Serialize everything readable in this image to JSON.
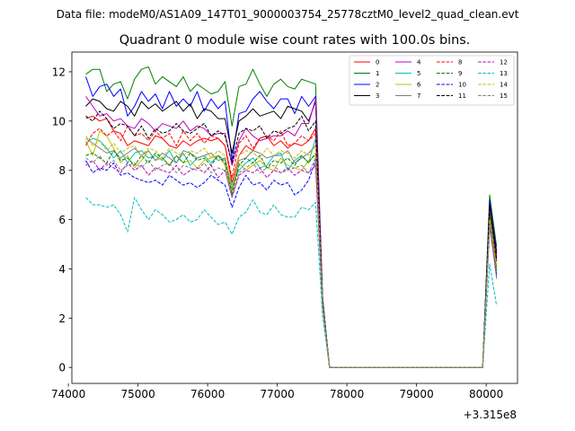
{
  "suptitle": "Data file: modeM0/AS1A09_147T01_9000003754_25778cztM0_level2_quad_clean.evt",
  "chart_data": {
    "type": "line",
    "title": "Quadrant 0 module wise count rates with 100.0s bins.",
    "xlabel": "",
    "ylabel": "",
    "x_offset_label": "+3.315e8",
    "xlim": [
      74050,
      80450
    ],
    "ylim": [
      -0.65,
      12.8
    ],
    "xticks": [
      74000,
      75000,
      76000,
      77000,
      78000,
      79000,
      80000
    ],
    "yticks": [
      0,
      2,
      4,
      6,
      8,
      10,
      12
    ],
    "legend_position": "top-right",
    "legend_columns": 4,
    "x": [
      74250,
      74350,
      74450,
      74550,
      74650,
      74750,
      74850,
      74950,
      75050,
      75150,
      75250,
      75350,
      75450,
      75550,
      75650,
      75750,
      75850,
      75950,
      76050,
      76150,
      76250,
      76350,
      76450,
      76550,
      76650,
      76750,
      76850,
      76950,
      77050,
      77150,
      77250,
      77350,
      77450,
      77550,
      77650,
      77750,
      77850,
      77950,
      78050,
      78150,
      78250,
      78350,
      78450,
      78550,
      78650,
      78750,
      78850,
      78950,
      79050,
      79150,
      79250,
      79350,
      79450,
      79550,
      79650,
      79750,
      79850,
      79950,
      80050,
      80150
    ],
    "series": [
      {
        "name": "0",
        "color": "#ff0000",
        "dash": "solid",
        "values": [
          10.1,
          10.2,
          10.0,
          10.1,
          9.6,
          9.5,
          9.0,
          9.2,
          9.1,
          9.0,
          9.4,
          9.3,
          9.0,
          8.9,
          9.2,
          9.0,
          9.2,
          9.3,
          9.2,
          9.3,
          9.0,
          7.5,
          8.6,
          9.0,
          8.8,
          9.3,
          9.4,
          9.0,
          9.2,
          8.9,
          9.1,
          9.0,
          9.2,
          9.7,
          2.8,
          0.0,
          0.0,
          0.0,
          0.0,
          0.0,
          0.0,
          0.0,
          0.0,
          0.0,
          0.0,
          0.0,
          0.0,
          0.0,
          0.0,
          0.0,
          0.0,
          0.0,
          0.0,
          0.0,
          0.0,
          0.0,
          0.0,
          0.0,
          6.5,
          4.3
        ]
      },
      {
        "name": "1",
        "color": "#008000",
        "dash": "solid",
        "values": [
          11.9,
          12.1,
          12.1,
          11.2,
          11.5,
          11.6,
          10.9,
          11.7,
          12.1,
          12.2,
          11.5,
          11.8,
          11.6,
          11.4,
          11.8,
          11.2,
          11.5,
          11.3,
          11.1,
          11.2,
          11.6,
          9.8,
          11.4,
          11.5,
          12.1,
          11.5,
          11.0,
          11.5,
          11.7,
          11.4,
          11.3,
          11.7,
          11.6,
          11.5,
          2.9,
          0.0,
          0.0,
          0.0,
          0.0,
          0.0,
          0.0,
          0.0,
          0.0,
          0.0,
          0.0,
          0.0,
          0.0,
          0.0,
          0.0,
          0.0,
          0.0,
          0.0,
          0.0,
          0.0,
          0.0,
          0.0,
          0.0,
          0.0,
          7.0,
          4.9
        ]
      },
      {
        "name": "2",
        "color": "#0000ff",
        "dash": "solid",
        "values": [
          11.8,
          11.0,
          11.4,
          11.5,
          11.0,
          11.3,
          10.2,
          10.6,
          11.2,
          10.8,
          11.1,
          10.5,
          11.2,
          10.6,
          10.9,
          10.6,
          11.2,
          10.4,
          10.9,
          10.5,
          10.8,
          8.4,
          10.3,
          10.4,
          10.9,
          11.2,
          10.8,
          10.5,
          10.9,
          10.9,
          10.3,
          11.0,
          10.6,
          11.0,
          2.8,
          0.0,
          0.0,
          0.0,
          0.0,
          0.0,
          0.0,
          0.0,
          0.0,
          0.0,
          0.0,
          0.0,
          0.0,
          0.0,
          0.0,
          0.0,
          0.0,
          0.0,
          0.0,
          0.0,
          0.0,
          0.0,
          0.0,
          0.0,
          6.8,
          4.7
        ]
      },
      {
        "name": "3",
        "color": "#000000",
        "dash": "solid",
        "values": [
          10.6,
          10.9,
          10.8,
          10.5,
          10.4,
          10.8,
          10.6,
          10.2,
          10.8,
          10.5,
          10.7,
          10.4,
          10.6,
          10.8,
          10.4,
          10.7,
          10.1,
          10.5,
          10.4,
          10.1,
          10.1,
          8.7,
          10.0,
          10.2,
          10.5,
          10.2,
          10.3,
          10.4,
          10.1,
          10.6,
          10.5,
          10.4,
          10.0,
          10.8,
          2.7,
          0.0,
          0.0,
          0.0,
          0.0,
          0.0,
          0.0,
          0.0,
          0.0,
          0.0,
          0.0,
          0.0,
          0.0,
          0.0,
          0.0,
          0.0,
          0.0,
          0.0,
          0.0,
          0.0,
          0.0,
          0.0,
          0.0,
          0.0,
          6.6,
          4.6
        ]
      },
      {
        "name": "4",
        "color": "#bf00bf",
        "dash": "solid",
        "values": [
          11.0,
          10.6,
          10.2,
          10.3,
          10.0,
          10.1,
          9.8,
          9.7,
          10.1,
          9.9,
          9.6,
          9.9,
          9.8,
          9.7,
          10.0,
          9.6,
          9.8,
          9.7,
          9.4,
          9.5,
          9.5,
          8.2,
          9.2,
          9.7,
          9.4,
          9.2,
          9.3,
          9.4,
          9.4,
          9.6,
          9.4,
          9.9,
          9.9,
          10.9,
          2.8,
          0.0,
          0.0,
          0.0,
          0.0,
          0.0,
          0.0,
          0.0,
          0.0,
          0.0,
          0.0,
          0.0,
          0.0,
          0.0,
          0.0,
          0.0,
          0.0,
          0.0,
          0.0,
          0.0,
          0.0,
          0.0,
          0.0,
          0.0,
          6.3,
          4.5
        ]
      },
      {
        "name": "5",
        "color": "#00bfbf",
        "dash": "solid",
        "values": [
          9.1,
          9.3,
          9.2,
          8.9,
          8.5,
          8.8,
          8.3,
          8.7,
          8.8,
          8.5,
          8.6,
          8.4,
          8.8,
          8.3,
          8.7,
          8.2,
          8.5,
          8.6,
          8.3,
          8.6,
          8.4,
          7.4,
          8.0,
          8.3,
          8.5,
          8.1,
          8.2,
          8.6,
          8.7,
          8.0,
          8.4,
          8.6,
          8.3,
          9.3,
          2.6,
          0.0,
          0.0,
          0.0,
          0.0,
          0.0,
          0.0,
          0.0,
          0.0,
          0.0,
          0.0,
          0.0,
          0.0,
          0.0,
          0.0,
          0.0,
          0.0,
          0.0,
          0.0,
          0.0,
          0.0,
          0.0,
          0.0,
          0.0,
          6.0,
          3.9
        ]
      },
      {
        "name": "6",
        "color": "#bfbf00",
        "dash": "solid",
        "values": [
          9.2,
          8.6,
          9.6,
          9.4,
          8.9,
          8.3,
          8.6,
          8.1,
          8.4,
          8.8,
          8.4,
          8.5,
          8.2,
          8.6,
          8.3,
          8.4,
          8.1,
          8.4,
          8.5,
          8.6,
          8.2,
          7.1,
          8.3,
          8.0,
          8.2,
          8.4,
          8.1,
          8.0,
          8.5,
          8.2,
          8.1,
          8.0,
          8.4,
          8.6,
          2.6,
          0.0,
          0.0,
          0.0,
          0.0,
          0.0,
          0.0,
          0.0,
          0.0,
          0.0,
          0.0,
          0.0,
          0.0,
          0.0,
          0.0,
          0.0,
          0.0,
          0.0,
          0.0,
          0.0,
          0.0,
          0.0,
          0.0,
          0.0,
          5.9,
          3.6
        ]
      },
      {
        "name": "7",
        "color": "#808080",
        "dash": "solid",
        "values": [
          9.3,
          9.1,
          8.9,
          8.7,
          8.8,
          8.5,
          8.7,
          8.9,
          8.6,
          8.8,
          8.4,
          8.7,
          8.5,
          8.3,
          8.8,
          8.7,
          8.5,
          8.6,
          8.7,
          8.4,
          8.5,
          7.2,
          8.4,
          8.5,
          8.8,
          8.7,
          8.5,
          8.6,
          8.6,
          8.8,
          8.3,
          8.5,
          8.7,
          9.0,
          2.7,
          0.0,
          0.0,
          0.0,
          0.0,
          0.0,
          0.0,
          0.0,
          0.0,
          0.0,
          0.0,
          0.0,
          0.0,
          0.0,
          0.0,
          0.0,
          0.0,
          0.0,
          0.0,
          0.0,
          0.0,
          0.0,
          0.0,
          0.0,
          6.1,
          4.0
        ]
      },
      {
        "name": "8",
        "color": "#ff0000",
        "dash": "dashed",
        "values": [
          9.0,
          9.5,
          9.7,
          9.4,
          9.6,
          9.2,
          9.8,
          9.4,
          9.5,
          9.2,
          9.6,
          9.3,
          9.5,
          9.0,
          9.6,
          9.2,
          9.5,
          9.1,
          9.4,
          9.3,
          9.0,
          7.7,
          9.1,
          9.4,
          8.9,
          9.3,
          9.4,
          9.2,
          9.6,
          9.0,
          9.1,
          9.4,
          9.2,
          9.5,
          2.7,
          0.0,
          0.0,
          0.0,
          0.0,
          0.0,
          0.0,
          0.0,
          0.0,
          0.0,
          0.0,
          0.0,
          0.0,
          0.0,
          0.0,
          0.0,
          0.0,
          0.0,
          0.0,
          0.0,
          0.0,
          0.0,
          0.0,
          0.0,
          6.4,
          4.4
        ]
      },
      {
        "name": "9",
        "color": "#008000",
        "dash": "dashed",
        "values": [
          8.6,
          8.7,
          8.5,
          8.3,
          8.8,
          8.4,
          8.5,
          8.2,
          8.6,
          8.3,
          8.7,
          8.5,
          8.2,
          8.6,
          8.3,
          8.7,
          8.4,
          8.5,
          8.2,
          8.6,
          8.3,
          7.0,
          8.2,
          8.5,
          8.3,
          8.6,
          8.1,
          8.4,
          8.3,
          8.5,
          8.2,
          8.6,
          8.3,
          8.7,
          2.6,
          0.0,
          0.0,
          0.0,
          0.0,
          0.0,
          0.0,
          0.0,
          0.0,
          0.0,
          0.0,
          0.0,
          0.0,
          0.0,
          0.0,
          0.0,
          0.0,
          0.0,
          0.0,
          0.0,
          0.0,
          0.0,
          0.0,
          0.0,
          6.2,
          4.1
        ]
      },
      {
        "name": "10",
        "color": "#0000ff",
        "dash": "dashed",
        "values": [
          8.4,
          7.9,
          8.1,
          8.0,
          8.3,
          7.8,
          7.9,
          7.7,
          7.6,
          7.5,
          7.6,
          7.4,
          7.8,
          7.6,
          7.4,
          7.5,
          7.3,
          7.5,
          7.8,
          7.6,
          7.4,
          6.5,
          7.3,
          7.8,
          7.4,
          7.5,
          7.2,
          7.6,
          7.4,
          7.5,
          7.0,
          7.2,
          7.6,
          8.4,
          2.5,
          0.0,
          0.0,
          0.0,
          0.0,
          0.0,
          0.0,
          0.0,
          0.0,
          0.0,
          0.0,
          0.0,
          0.0,
          0.0,
          0.0,
          0.0,
          0.0,
          0.0,
          0.0,
          0.0,
          0.0,
          0.0,
          0.0,
          0.0,
          5.7,
          3.8
        ]
      },
      {
        "name": "11",
        "color": "#000000",
        "dash": "dashed",
        "values": [
          10.2,
          10.0,
          10.4,
          10.1,
          9.7,
          9.9,
          9.8,
          9.4,
          9.8,
          9.3,
          9.7,
          9.5,
          9.6,
          9.9,
          9.6,
          9.5,
          9.7,
          9.9,
          9.4,
          9.6,
          9.4,
          8.3,
          9.5,
          9.7,
          9.6,
          9.8,
          9.3,
          9.6,
          9.5,
          9.7,
          9.8,
          10.2,
          9.6,
          10.0,
          2.7,
          0.0,
          0.0,
          0.0,
          0.0,
          0.0,
          0.0,
          0.0,
          0.0,
          0.0,
          0.0,
          0.0,
          0.0,
          0.0,
          0.0,
          0.0,
          0.0,
          0.0,
          0.0,
          0.0,
          0.0,
          0.0,
          0.0,
          0.0,
          6.6,
          4.4
        ]
      },
      {
        "name": "12",
        "color": "#bf00bf",
        "dash": "dashed",
        "values": [
          8.2,
          8.4,
          8.0,
          8.3,
          8.1,
          7.9,
          8.3,
          8.0,
          8.2,
          7.8,
          8.1,
          8.0,
          7.9,
          8.2,
          7.8,
          8.0,
          8.1,
          7.9,
          8.2,
          7.7,
          8.0,
          6.9,
          7.8,
          8.0,
          7.9,
          8.1,
          7.7,
          8.0,
          7.9,
          8.1,
          7.8,
          8.0,
          7.9,
          8.2,
          2.5,
          0.0,
          0.0,
          0.0,
          0.0,
          0.0,
          0.0,
          0.0,
          0.0,
          0.0,
          0.0,
          0.0,
          0.0,
          0.0,
          0.0,
          0.0,
          0.0,
          0.0,
          0.0,
          0.0,
          0.0,
          0.0,
          0.0,
          0.0,
          5.8,
          3.7
        ]
      },
      {
        "name": "13",
        "color": "#00bfbf",
        "dash": "dashed",
        "values": [
          6.9,
          6.6,
          6.6,
          6.5,
          6.6,
          6.2,
          5.5,
          6.9,
          6.4,
          6.0,
          6.4,
          6.2,
          5.9,
          6.0,
          6.2,
          5.9,
          6.0,
          6.4,
          6.1,
          5.8,
          5.9,
          5.4,
          6.1,
          6.3,
          6.8,
          6.3,
          6.2,
          6.6,
          6.2,
          6.1,
          6.1,
          6.5,
          6.4,
          6.7,
          2.1,
          0.0,
          0.0,
          0.0,
          0.0,
          0.0,
          0.0,
          0.0,
          0.0,
          0.0,
          0.0,
          0.0,
          0.0,
          0.0,
          0.0,
          0.0,
          0.0,
          0.0,
          0.0,
          0.0,
          0.0,
          0.0,
          0.0,
          0.0,
          4.2,
          2.5
        ]
      },
      {
        "name": "14",
        "color": "#bfbf00",
        "dash": "dashed",
        "values": [
          9.4,
          9.0,
          9.2,
          8.8,
          9.1,
          8.7,
          8.9,
          9.0,
          8.6,
          8.9,
          8.8,
          8.5,
          8.9,
          8.7,
          8.6,
          8.8,
          8.7,
          8.9,
          8.5,
          8.8,
          8.6,
          7.3,
          8.6,
          8.8,
          8.7,
          8.5,
          8.9,
          8.6,
          8.8,
          8.7,
          8.5,
          8.8,
          8.6,
          9.0,
          2.6,
          0.0,
          0.0,
          0.0,
          0.0,
          0.0,
          0.0,
          0.0,
          0.0,
          0.0,
          0.0,
          0.0,
          0.0,
          0.0,
          0.0,
          0.0,
          0.0,
          0.0,
          0.0,
          0.0,
          0.0,
          0.0,
          0.0,
          0.0,
          6.0,
          4.0
        ]
      },
      {
        "name": "15",
        "color": "#808080",
        "dash": "dashed",
        "values": [
          8.5,
          8.3,
          8.6,
          8.2,
          8.4,
          8.0,
          8.2,
          8.3,
          8.1,
          8.4,
          8.0,
          8.2,
          8.3,
          7.9,
          8.2,
          8.1,
          8.0,
          8.3,
          7.9,
          8.1,
          8.0,
          6.9,
          7.9,
          8.1,
          8.3,
          7.9,
          8.1,
          8.2,
          7.9,
          8.0,
          8.1,
          8.2,
          7.9,
          8.5,
          2.5,
          0.0,
          0.0,
          0.0,
          0.0,
          0.0,
          0.0,
          0.0,
          0.0,
          0.0,
          0.0,
          0.0,
          0.0,
          0.0,
          0.0,
          0.0,
          0.0,
          0.0,
          0.0,
          0.0,
          0.0,
          0.0,
          0.0,
          0.0,
          5.8,
          3.6
        ]
      }
    ]
  }
}
